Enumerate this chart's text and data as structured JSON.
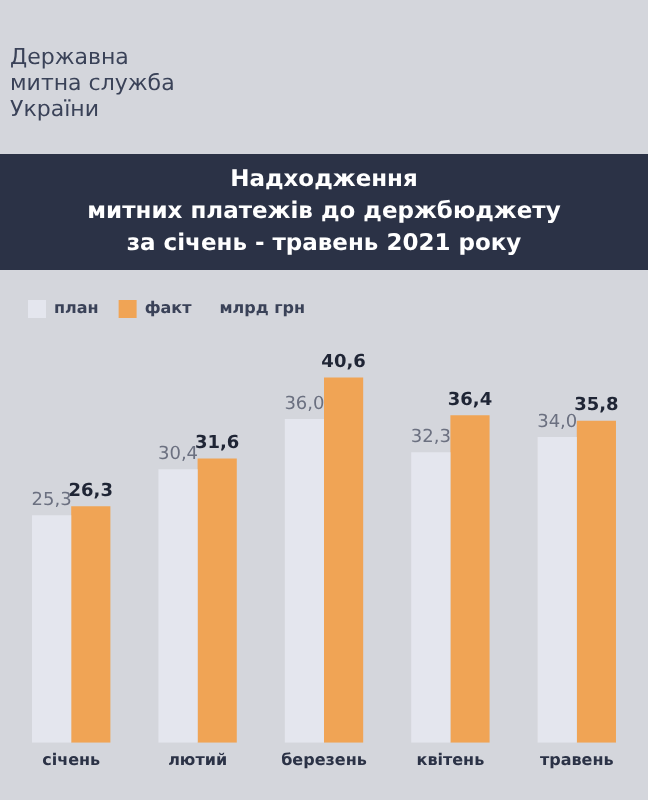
{
  "chart_data": {
    "type": "bar",
    "title": "Надходження\nмитних платежів до держбюджету\nза січень - травень 2021 року",
    "ylabel": "млрд грн",
    "annotations": [
      "Державна\nмитна служба\nУкраїни"
    ],
    "categories": [
      "січень",
      "лютий",
      "березень",
      "квітень",
      "травень"
    ],
    "series": [
      {
        "name": "план",
        "color": "#e4e6ee",
        "values": [
          25.3,
          30.4,
          36.0,
          32.3,
          34.0
        ],
        "value_labels": [
          "25,3",
          "30,4",
          "36,0",
          "32,3",
          "34,0"
        ]
      },
      {
        "name": "факт",
        "color": "#f0a455",
        "values": [
          26.3,
          31.6,
          40.6,
          36.4,
          35.8
        ],
        "value_labels": [
          "26,3",
          "31,6",
          "40,6",
          "36,4",
          "35,8"
        ]
      }
    ],
    "legend": "top left",
    "grid": false,
    "tick_labels": "x"
  }
}
